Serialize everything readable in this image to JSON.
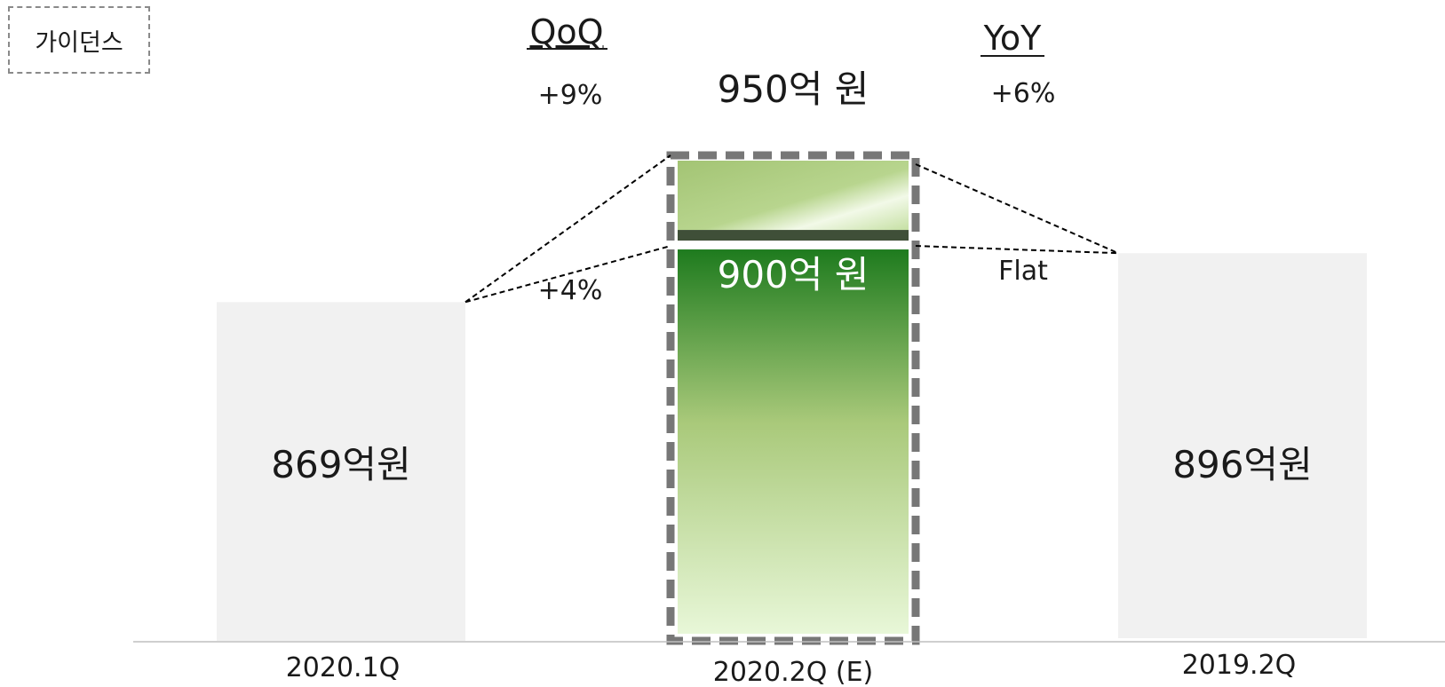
{
  "badge": "가이던스",
  "headers": {
    "qoq": "QoQ",
    "yoy": "YoY"
  },
  "chart_data": {
    "type": "bar",
    "categories": [
      "2020.1Q",
      "2020.2Q (E)",
      "2019.2Q"
    ],
    "values": [
      869,
      900,
      896
    ],
    "value_labels": [
      "869억원",
      "900억 원",
      "896억원"
    ],
    "guidance": {
      "low": 900,
      "high": 950,
      "low_label": "900억 원",
      "high_label": "950억 원"
    },
    "comparisons": {
      "qoq": {
        "high": "+9%",
        "low": "+4%"
      },
      "yoy": {
        "high": "+6%",
        "low": "Flat"
      }
    },
    "ylim": [
      0,
      1000
    ],
    "colors": {
      "context_bar": "#f1f1f1",
      "guidance_dark": "#1e7b1e",
      "guidance_light": "#e8f7d8",
      "guidance_top": "#a7c878",
      "axis": "#bfbfbf"
    }
  }
}
